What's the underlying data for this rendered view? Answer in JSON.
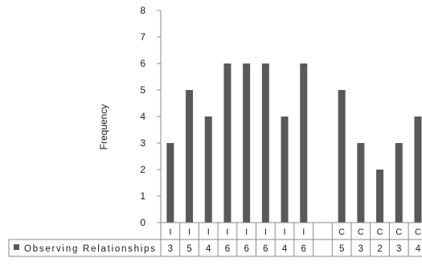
{
  "chart_data": {
    "type": "bar",
    "ylabel": "Frequency",
    "ylim": [
      0,
      8
    ],
    "yticks": [
      0,
      1,
      2,
      3,
      4,
      5,
      6,
      7,
      8
    ],
    "grid": false,
    "legend": "table-left",
    "bar_color": "#595959",
    "categories": [
      "I",
      "I",
      "I",
      "I",
      "I",
      "I",
      "I",
      "I",
      "",
      "C",
      "C",
      "C",
      "C",
      "C"
    ],
    "series": [
      {
        "name": "Observing Relationships",
        "values": [
          3,
          5,
          4,
          6,
          6,
          6,
          4,
          6,
          null,
          5,
          3,
          2,
          3,
          4
        ]
      }
    ]
  }
}
